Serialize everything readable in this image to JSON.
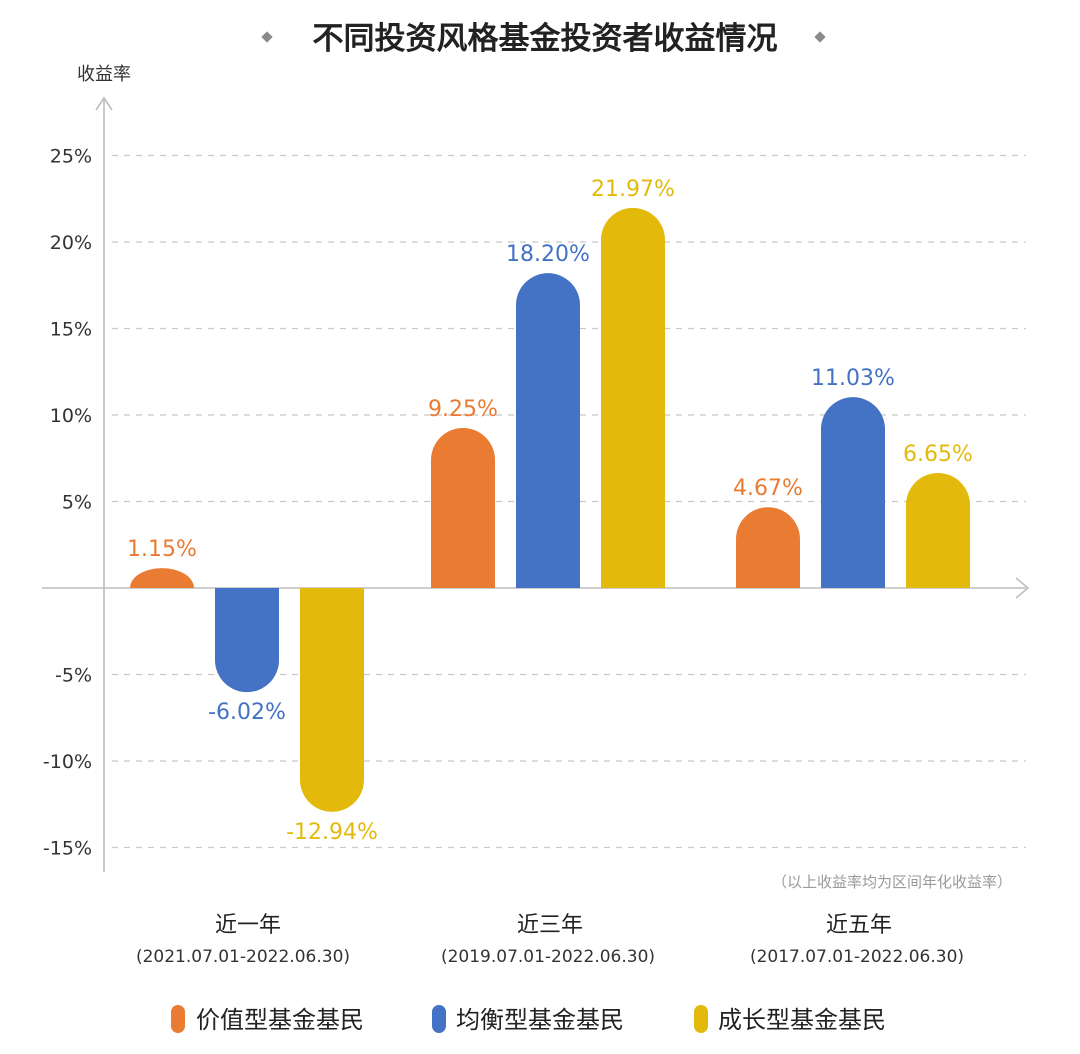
{
  "chart_data": {
    "type": "bar",
    "title": "不同投资风格基金投资者收益情况",
    "ylabel": "收益率",
    "ylim": [
      -15,
      25
    ],
    "yticks": [
      25,
      20,
      15,
      10,
      5,
      -5,
      -10,
      -15
    ],
    "ytick_labels": [
      "25%",
      "20%",
      "15%",
      "10%",
      "5%",
      "-5%",
      "-10%",
      "-15%"
    ],
    "grid": true,
    "categories": [
      "近一年",
      "近三年",
      "近五年"
    ],
    "category_ranges": [
      "(2021.07.01-2022.06.30)",
      "(2019.07.01-2022.06.30)",
      "(2017.07.01-2022.06.30)"
    ],
    "series": [
      {
        "name": "价值型基金基民",
        "color": "#EA7B33",
        "values": [
          1.15,
          9.25,
          4.67
        ],
        "labels": [
          "1.15%",
          "9.25%",
          "4.67%"
        ]
      },
      {
        "name": "均衡型基金基民",
        "color": "#4472C4",
        "values": [
          -6.02,
          18.2,
          11.03
        ],
        "labels": [
          "-6.02%",
          "18.20%",
          "11.03%"
        ]
      },
      {
        "name": "成长型基金基民",
        "color": "#E3BA0C",
        "values": [
          -12.94,
          21.97,
          6.65
        ],
        "labels": [
          "-12.94%",
          "21.97%",
          "6.65%"
        ]
      }
    ],
    "note": "（以上收益率均为区间年化收益率）",
    "legend_position": "bottom"
  }
}
